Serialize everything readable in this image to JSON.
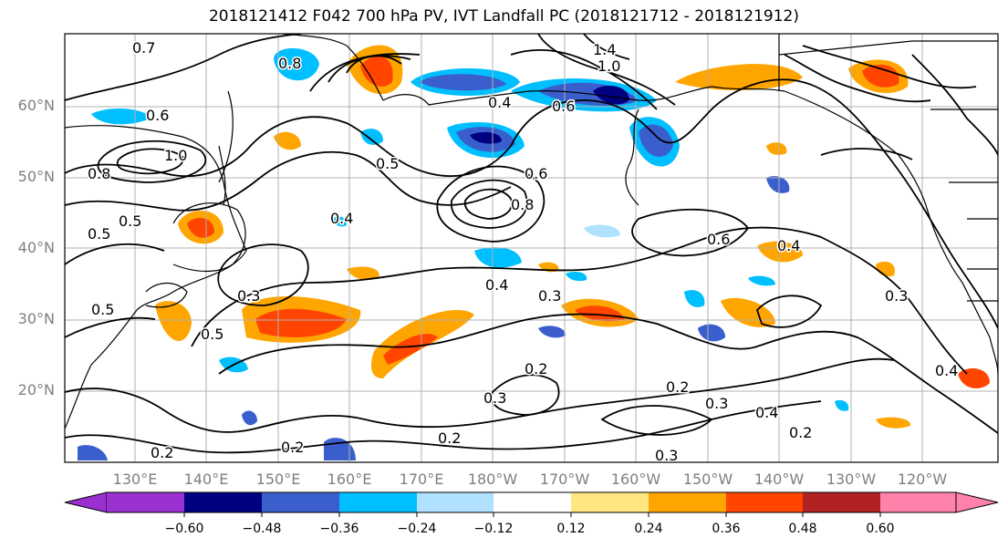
{
  "title": "2018121412 F042 700 hPa PV, IVT Landfall PC (2018121712 - 2018121912)",
  "lat_labels": [
    "60°N",
    "50°N",
    "40°N",
    "30°N",
    "20°N"
  ],
  "lon_labels": [
    "130°E",
    "140°E",
    "150°E",
    "160°E",
    "170°E",
    "180°W",
    "170°W",
    "160°W",
    "150°W",
    "140°W",
    "130°W",
    "120°W"
  ],
  "contour_labels": [
    "0.7",
    "0.6",
    "0.8",
    "1.0",
    "0.5",
    "0.8",
    "0.4",
    "0.6",
    "1.0",
    "1.4",
    "0.5",
    "0.6",
    "0.8",
    "0.5",
    "0.3",
    "0.4",
    "0.6",
    "0.4",
    "0.5",
    "0.5",
    "0.3",
    "0.4",
    "0.3",
    "0.2",
    "0.2",
    "0.3",
    "0.2",
    "0.3",
    "0.4",
    "0.2",
    "0.4",
    "0.2",
    "0.2",
    "0.3"
  ],
  "colorbar": {
    "tick_labels": [
      "−0.60",
      "−0.48",
      "−0.36",
      "−0.24",
      "−0.12",
      "0.12",
      "0.24",
      "0.36",
      "0.48",
      "0.60"
    ],
    "colors": [
      "#9b30d0",
      "#000080",
      "#3a5fcd",
      "#00bfff",
      "#b0e2ff",
      "#ffffff",
      "#ffe680",
      "#ffa500",
      "#ff4500",
      "#b22222",
      "#ff82ab"
    ]
  }
}
